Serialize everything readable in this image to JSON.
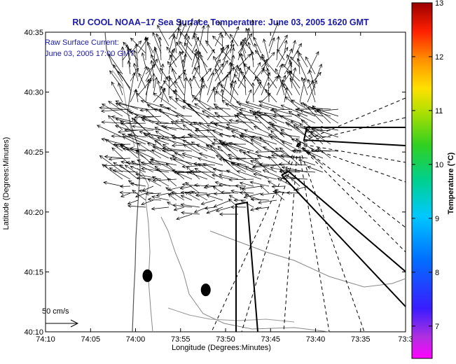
{
  "chart_data": {
    "type": "vector-field-map",
    "title": "RU COOL  NOAA–17  Sea Surface Temperature:  June 03, 2005 1620 GMT",
    "xlabel": "Longitude (Degrees:Minutes)",
    "ylabel": "Latitude (Degrees:Minutes)",
    "annotation_lines": [
      "Raw Surface Current:",
      "June 03, 2005 17:00 GMT"
    ],
    "scale_label": "50 cm/s",
    "x_ticks": [
      {
        "label": "74:10",
        "value": -74.1667
      },
      {
        "label": "74:05",
        "value": -74.0833
      },
      {
        "label": "74:00",
        "value": -74.0
      },
      {
        "label": "73:55",
        "value": -73.9167
      },
      {
        "label": "73:50",
        "value": -73.8333
      },
      {
        "label": "73:45",
        "value": -73.75
      },
      {
        "label": "73:40",
        "value": -73.6667
      },
      {
        "label": "73:35",
        "value": -73.5833
      },
      {
        "label": "73:3",
        "value": -73.5
      }
    ],
    "y_ticks": [
      {
        "label": "40:10",
        "value": 40.1667
      },
      {
        "label": "40:15",
        "value": 40.25
      },
      {
        "label": "40:20",
        "value": 40.3333
      },
      {
        "label": "40:25",
        "value": 40.4167
      },
      {
        "label": "40:30",
        "value": 40.5
      },
      {
        "label": "40:35",
        "value": 40.5833
      }
    ],
    "xlim": [
      -74.1667,
      -73.5
    ],
    "ylim": [
      40.1667,
      40.5833
    ],
    "colorbar": {
      "label": "Temperature (°C)",
      "range": [
        6.4,
        13
      ],
      "ticks": [
        "7",
        "8",
        "9",
        "10",
        "11",
        "12",
        "13"
      ],
      "tick_values": [
        7,
        8,
        9,
        10,
        11,
        12,
        13
      ]
    },
    "current_vectors": {
      "reference_speed_cm_s": 50,
      "region_center": [
        -73.86,
        40.43
      ],
      "grid_step_deg": 0.0125
    },
    "markers": [
      {
        "lon": -73.978,
        "lat": 40.2447
      },
      {
        "lon": -73.87,
        "lat": 40.225
      }
    ],
    "grid": false,
    "legend": "none"
  }
}
